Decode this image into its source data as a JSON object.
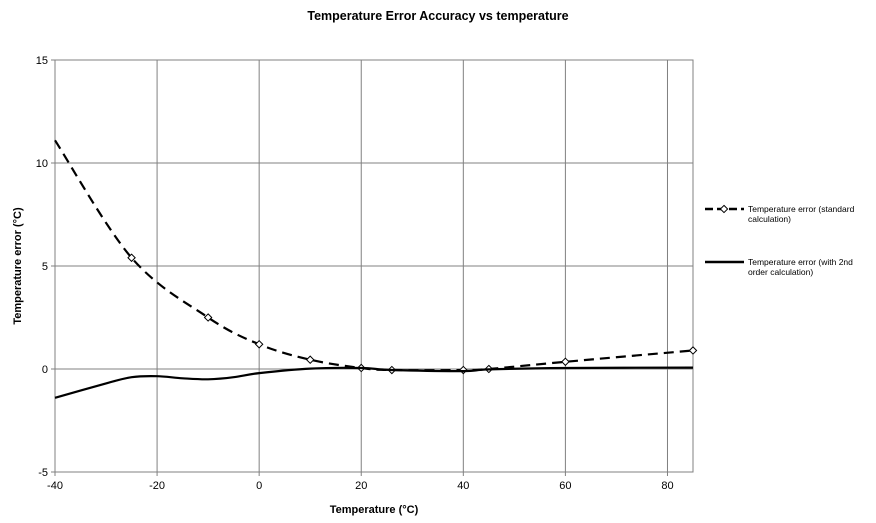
{
  "chart_data": {
    "type": "line",
    "title": "Temperature Error Accuracy vs temperature",
    "xlabel": "Temperature (°C)",
    "ylabel": "Temperature error (°C)",
    "xlim": [
      -40,
      85
    ],
    "ylim": [
      -5,
      15
    ],
    "x_ticks": [
      "-40",
      "-20",
      "0",
      "20",
      "40",
      "60",
      "80"
    ],
    "y_ticks": [
      "-5",
      "0",
      "5",
      "10",
      "15"
    ],
    "grid": true,
    "legend_position": "right",
    "series": [
      {
        "name": "Temperature error (standard calculation)",
        "legend_lines": [
          "Temperature error (standard",
          "calculation)"
        ],
        "style": "dashed",
        "marker": "diamond",
        "color": "#000000",
        "x": [
          -40,
          -25,
          -10,
          0,
          10,
          20,
          26,
          40,
          45,
          60,
          85
        ],
        "y": [
          11.1,
          5.4,
          2.5,
          1.2,
          0.45,
          0.05,
          -0.05,
          -0.05,
          0.0,
          0.35,
          0.9
        ],
        "markers_at": [
          -25,
          -10,
          0,
          10,
          20,
          26,
          40,
          45,
          60,
          85
        ]
      },
      {
        "name": "Temperature error (with 2nd order calculation)",
        "legend_lines": [
          "Temperature error (with 2nd",
          "order calculation)"
        ],
        "style": "solid",
        "marker": "none",
        "color": "#000000",
        "x": [
          -40,
          -30,
          -25,
          -20,
          -15,
          -10,
          -5,
          0,
          10,
          20,
          26,
          40,
          45,
          60,
          85
        ],
        "y": [
          -1.4,
          -0.7,
          -0.4,
          -0.35,
          -0.45,
          -0.5,
          -0.4,
          -0.2,
          0.02,
          0.05,
          -0.05,
          -0.1,
          -0.02,
          0.05,
          0.07
        ]
      }
    ]
  }
}
